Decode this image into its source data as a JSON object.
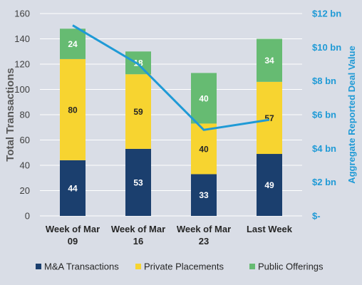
{
  "chart_data": {
    "type": "bar",
    "stacked": true,
    "categories": [
      [
        "Week of Mar",
        "09"
      ],
      [
        "Week of Mar",
        "16"
      ],
      [
        "Week of Mar",
        "23"
      ],
      [
        "Last Week"
      ]
    ],
    "ylabel": "Total Transactions",
    "ylim": [
      0,
      160
    ],
    "yticks": [
      0,
      20,
      40,
      60,
      80,
      100,
      120,
      140,
      160
    ],
    "y2label": "Aggregate Reported Deal Value",
    "y2lim": [
      0,
      12
    ],
    "y2ticks": [
      "$-",
      "$2 bn",
      "$4 bn",
      "$6 bn",
      "$8 bn",
      "$10 bn",
      "$12 bn"
    ],
    "grid": true,
    "legend_position": "bottom",
    "series": [
      {
        "name": "M&A Transactions",
        "color": "#1b3f6e",
        "label_color": "#ffffff",
        "values": [
          44,
          53,
          33,
          49
        ]
      },
      {
        "name": "Private Placements",
        "color": "#f7d430",
        "label_color": "#262626",
        "values": [
          80,
          59,
          40,
          57
        ]
      },
      {
        "name": "Public Offerings",
        "color": "#66bb72",
        "label_color": "#ffffff",
        "values": [
          24,
          18,
          40,
          34
        ]
      }
    ],
    "line_series": {
      "axis": "right",
      "color": "#1f9ad6",
      "values": [
        11.3,
        9.0,
        5.1,
        5.7
      ]
    }
  }
}
